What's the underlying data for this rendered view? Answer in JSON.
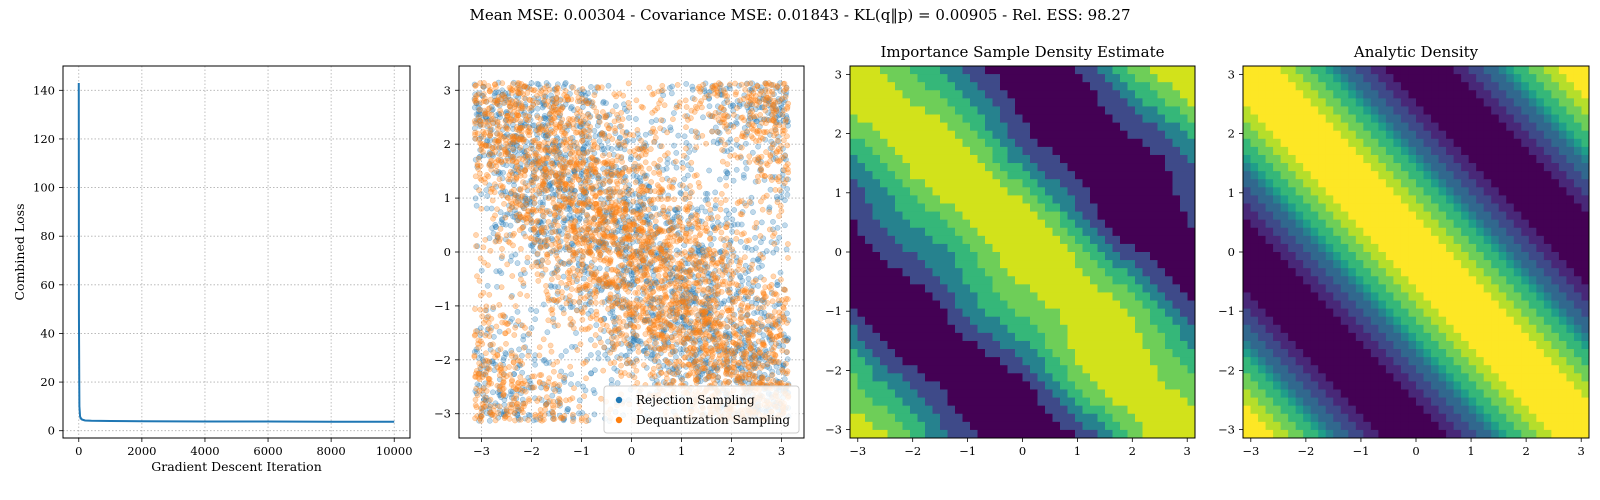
{
  "suptitle": "Mean MSE: 0.00304 - Covariance MSE: 0.01843 - KL(q‖p) = 0.00905 - Rel. ESS: 98.27",
  "colors": {
    "blue": "#1f77b4",
    "orange": "#ff7f0e",
    "grid": "#b0b0b0"
  },
  "chart_data": [
    {
      "type": "line",
      "title": "",
      "xlabel": "Gradient Descent Iteration",
      "ylabel": "Combined Loss",
      "xlim": [
        -500,
        10500
      ],
      "ylim": [
        -3,
        150
      ],
      "xticks": [
        0,
        2000,
        4000,
        6000,
        8000,
        10000
      ],
      "yticks": [
        0,
        20,
        40,
        60,
        80,
        100,
        120,
        140
      ],
      "grid": true,
      "series": [
        {
          "color": "#1f77b4",
          "x": [
            0,
            5,
            10,
            15,
            20,
            30,
            40,
            60,
            80,
            100,
            150,
            200,
            400,
            1000,
            2000,
            4000,
            6000,
            8000,
            10000
          ],
          "y": [
            143,
            48,
            35,
            20,
            10,
            8,
            6,
            5,
            5,
            4.6,
            4.4,
            4.2,
            4.1,
            4.0,
            3.9,
            3.8,
            3.8,
            3.7,
            3.7
          ]
        }
      ]
    },
    {
      "type": "scatter",
      "title": "",
      "xlim": [
        -3.45,
        3.45
      ],
      "ylim": [
        -3.45,
        3.45
      ],
      "xticks": [
        -3,
        -2,
        -1,
        0,
        1,
        2,
        3
      ],
      "yticks": [
        -3,
        -2,
        -1,
        0,
        1,
        2,
        3
      ],
      "grid": true,
      "legend_position": "bottom-right",
      "series": [
        {
          "name": "Rejection Sampling",
          "color": "#1f77b4",
          "n_points": 2600
        },
        {
          "name": "Dequantization Sampling",
          "color": "#ff7f0e",
          "n_points": 3400
        }
      ]
    },
    {
      "type": "heatmap",
      "title": "Importance Sample Density Estimate",
      "xlim": [
        -3.14159,
        3.14159
      ],
      "ylim": [
        -3.14159,
        3.14159
      ],
      "xticks": [
        -3,
        -2,
        -1,
        0,
        1,
        2,
        3
      ],
      "yticks": [
        -3,
        -2,
        -1,
        0,
        1,
        2,
        3
      ],
      "colormap": [
        "#440154",
        "#3e4a89",
        "#26828e",
        "#35b779",
        "#6ece58",
        "#d2e21b"
      ]
    },
    {
      "type": "heatmap",
      "title": "Analytic Density",
      "xlim": [
        -3.14159,
        3.14159
      ],
      "ylim": [
        -3.14159,
        3.14159
      ],
      "xticks": [
        -3,
        -2,
        -1,
        0,
        1,
        2,
        3
      ],
      "yticks": [
        -3,
        -2,
        -1,
        0,
        1,
        2,
        3
      ],
      "colormap": [
        "#440154",
        "#482878",
        "#3e4a89",
        "#31688e",
        "#26828e",
        "#1f9e89",
        "#35b779",
        "#6ece58",
        "#b5de2b",
        "#fde725"
      ]
    }
  ]
}
